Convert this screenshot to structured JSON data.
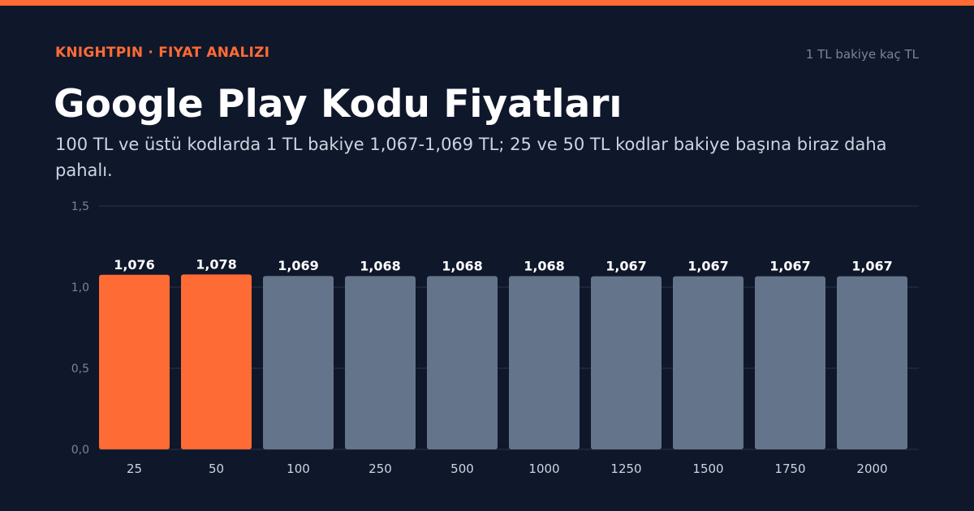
{
  "header": {
    "brand": "KNIGHTPIN · FIYAT ANALIZI",
    "topic": "1 TL bakiye kaç TL",
    "title": "Google Play Kodu Fiyatları",
    "subtitle": "100 TL ve üstü kodlarda 1 TL bakiye 1,067-1,069 TL; 25 ve 50 TL kodlar bakiye başına biraz daha pahalı."
  },
  "colors": {
    "background": "#0f172a",
    "accent": "#ff6b35",
    "bar_default": "#64748b",
    "grid": "#2a3447",
    "tick_text": "#7b8597",
    "category_text": "#cbd5e1"
  },
  "chart_data": {
    "type": "bar",
    "title": "",
    "xlabel": "",
    "ylabel": "",
    "categories": [
      "25",
      "50",
      "100",
      "250",
      "500",
      "1000",
      "1250",
      "1500",
      "1750",
      "2000"
    ],
    "values": [
      1.076,
      1.078,
      1.069,
      1.068,
      1.068,
      1.068,
      1.067,
      1.067,
      1.067,
      1.067
    ],
    "value_labels": [
      "1,076",
      "1,078",
      "1,069",
      "1,068",
      "1,068",
      "1,068",
      "1,067",
      "1,067",
      "1,067",
      "1,067"
    ],
    "highlighted_categories": [
      "25",
      "50"
    ],
    "ylim": [
      0,
      1.5
    ],
    "yticks": [
      0,
      0.5,
      1.0,
      1.5
    ],
    "ytick_labels": [
      "0,0",
      "0,5",
      "1,0",
      "1,5"
    ],
    "grid": true,
    "legend": "none"
  }
}
